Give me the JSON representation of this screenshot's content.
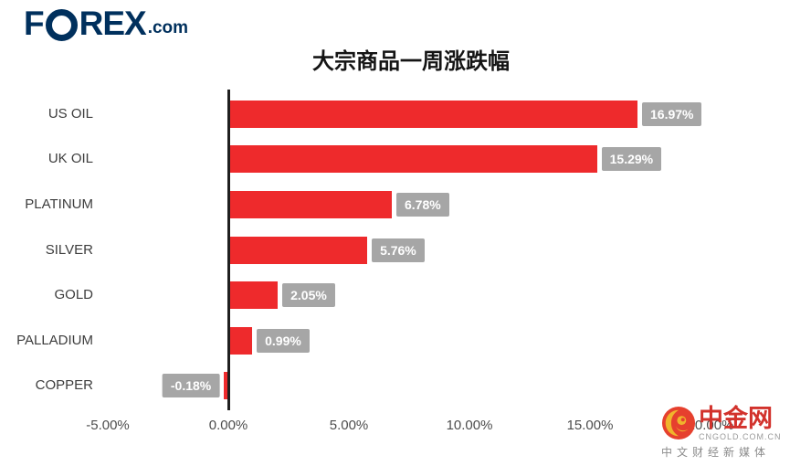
{
  "logo": {
    "part1": "F",
    "part2": "REX",
    "suffix": ".com"
  },
  "title": "大宗商品一周涨跌幅",
  "chart_data": {
    "type": "bar",
    "orientation": "horizontal",
    "title": "大宗商品一周涨跌幅",
    "categories": [
      "US OIL",
      "UK OIL",
      "PLATINUM",
      "SILVER",
      "GOLD",
      "PALLADIUM",
      "COPPER"
    ],
    "values": [
      16.97,
      15.29,
      6.78,
      5.76,
      2.05,
      0.99,
      -0.18
    ],
    "value_labels": [
      "16.97%",
      "15.29%",
      "6.78%",
      "5.76%",
      "2.05%",
      "0.99%",
      "-0.18%"
    ],
    "xlim": [
      -5,
      20
    ],
    "x_ticks": [
      {
        "value": -5,
        "label": "-5.00%"
      },
      {
        "value": 0,
        "label": "0.00%"
      },
      {
        "value": 5,
        "label": "5.00%"
      },
      {
        "value": 10,
        "label": "10.00%"
      },
      {
        "value": 15,
        "label": "15.00%"
      },
      {
        "value": 20,
        "label": "20.00%"
      }
    ],
    "grid": false,
    "legend": false,
    "colors": {
      "bar": "#ee2a2c",
      "value_box": "#a6a6a6",
      "axis_line": "#1f1f1f"
    }
  },
  "watermark": {
    "name": "中金网",
    "domain": "CNGOLD.COM.CN",
    "tagline": "中文财经新媒体"
  }
}
